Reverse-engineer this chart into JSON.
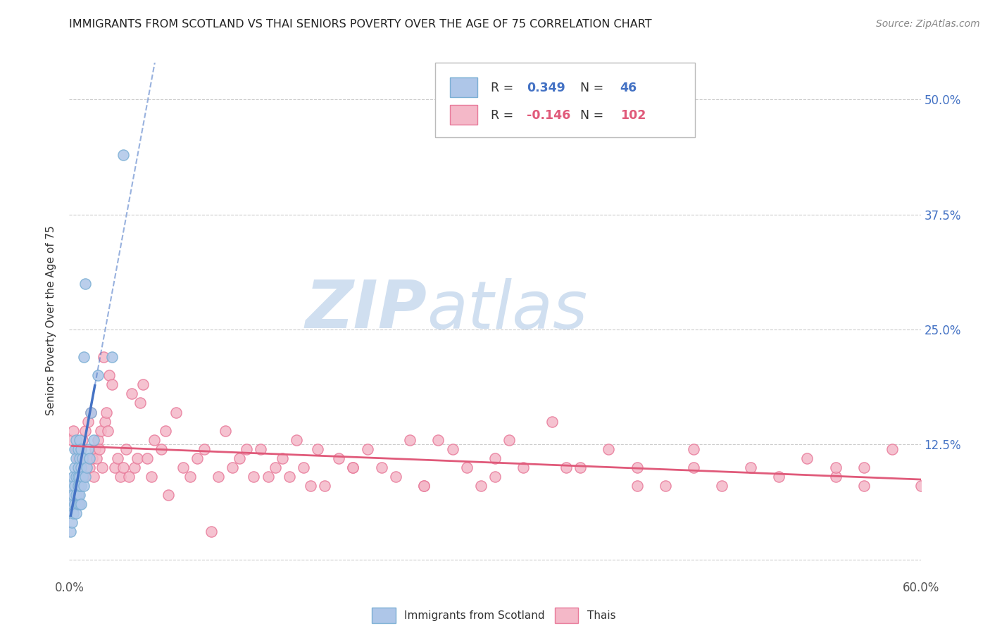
{
  "title": "IMMIGRANTS FROM SCOTLAND VS THAI SENIORS POVERTY OVER THE AGE OF 75 CORRELATION CHART",
  "source": "Source: ZipAtlas.com",
  "ylabel": "Seniors Poverty Over the Age of 75",
  "xlim": [
    0.0,
    0.6
  ],
  "ylim": [
    -0.02,
    0.54
  ],
  "scotland_R": 0.349,
  "scotland_N": 46,
  "thai_R": -0.146,
  "thai_N": 102,
  "scotland_color": "#aec6e8",
  "scotland_edge": "#7bafd4",
  "thai_color": "#f4b8c8",
  "thai_edge": "#e87a9a",
  "trendline_scotland_color": "#4472c4",
  "trendline_thai_color": "#e05a7a",
  "watermark_zip": "ZIP",
  "watermark_atlas": "atlas",
  "watermark_color": "#d0dff0",
  "scotland_x": [
    0.001,
    0.002,
    0.002,
    0.002,
    0.003,
    0.003,
    0.003,
    0.004,
    0.004,
    0.004,
    0.004,
    0.005,
    0.005,
    0.005,
    0.005,
    0.005,
    0.006,
    0.006,
    0.006,
    0.006,
    0.006,
    0.006,
    0.007,
    0.007,
    0.007,
    0.007,
    0.007,
    0.007,
    0.008,
    0.008,
    0.008,
    0.008,
    0.009,
    0.009,
    0.01,
    0.01,
    0.011,
    0.011,
    0.012,
    0.013,
    0.014,
    0.015,
    0.017,
    0.02,
    0.03,
    0.038
  ],
  "scotland_y": [
    0.03,
    0.04,
    0.06,
    0.08,
    0.05,
    0.07,
    0.09,
    0.06,
    0.08,
    0.1,
    0.12,
    0.05,
    0.07,
    0.09,
    0.11,
    0.13,
    0.06,
    0.07,
    0.08,
    0.09,
    0.1,
    0.12,
    0.06,
    0.07,
    0.08,
    0.09,
    0.11,
    0.13,
    0.06,
    0.08,
    0.1,
    0.12,
    0.09,
    0.11,
    0.08,
    0.22,
    0.09,
    0.3,
    0.1,
    0.12,
    0.11,
    0.16,
    0.13,
    0.2,
    0.22,
    0.44
  ],
  "thai_x": [
    0.002,
    0.003,
    0.005,
    0.006,
    0.007,
    0.008,
    0.009,
    0.01,
    0.011,
    0.012,
    0.013,
    0.014,
    0.015,
    0.016,
    0.017,
    0.018,
    0.019,
    0.02,
    0.021,
    0.022,
    0.023,
    0.024,
    0.025,
    0.026,
    0.027,
    0.028,
    0.03,
    0.032,
    0.034,
    0.036,
    0.038,
    0.04,
    0.042,
    0.044,
    0.046,
    0.048,
    0.05,
    0.052,
    0.055,
    0.058,
    0.06,
    0.065,
    0.068,
    0.07,
    0.075,
    0.08,
    0.085,
    0.09,
    0.095,
    0.1,
    0.105,
    0.11,
    0.115,
    0.12,
    0.125,
    0.13,
    0.135,
    0.14,
    0.145,
    0.15,
    0.155,
    0.16,
    0.165,
    0.17,
    0.175,
    0.18,
    0.19,
    0.2,
    0.21,
    0.22,
    0.23,
    0.24,
    0.25,
    0.26,
    0.27,
    0.28,
    0.29,
    0.3,
    0.31,
    0.32,
    0.34,
    0.36,
    0.38,
    0.4,
    0.42,
    0.44,
    0.46,
    0.48,
    0.5,
    0.52,
    0.54,
    0.56,
    0.58,
    0.6,
    0.54,
    0.56,
    0.4,
    0.44,
    0.3,
    0.35,
    0.25,
    0.2
  ],
  "thai_y": [
    0.13,
    0.14,
    0.12,
    0.11,
    0.1,
    0.12,
    0.13,
    0.09,
    0.14,
    0.1,
    0.15,
    0.1,
    0.16,
    0.11,
    0.09,
    0.12,
    0.11,
    0.13,
    0.12,
    0.14,
    0.1,
    0.22,
    0.15,
    0.16,
    0.14,
    0.2,
    0.19,
    0.1,
    0.11,
    0.09,
    0.1,
    0.12,
    0.09,
    0.18,
    0.1,
    0.11,
    0.17,
    0.19,
    0.11,
    0.09,
    0.13,
    0.12,
    0.14,
    0.07,
    0.16,
    0.1,
    0.09,
    0.11,
    0.12,
    0.03,
    0.09,
    0.14,
    0.1,
    0.11,
    0.12,
    0.09,
    0.12,
    0.09,
    0.1,
    0.11,
    0.09,
    0.13,
    0.1,
    0.08,
    0.12,
    0.08,
    0.11,
    0.1,
    0.12,
    0.1,
    0.09,
    0.13,
    0.08,
    0.13,
    0.12,
    0.1,
    0.08,
    0.11,
    0.13,
    0.1,
    0.15,
    0.1,
    0.12,
    0.1,
    0.08,
    0.12,
    0.08,
    0.1,
    0.09,
    0.11,
    0.09,
    0.1,
    0.12,
    0.08,
    0.1,
    0.08,
    0.08,
    0.1,
    0.09,
    0.1,
    0.08,
    0.1
  ]
}
